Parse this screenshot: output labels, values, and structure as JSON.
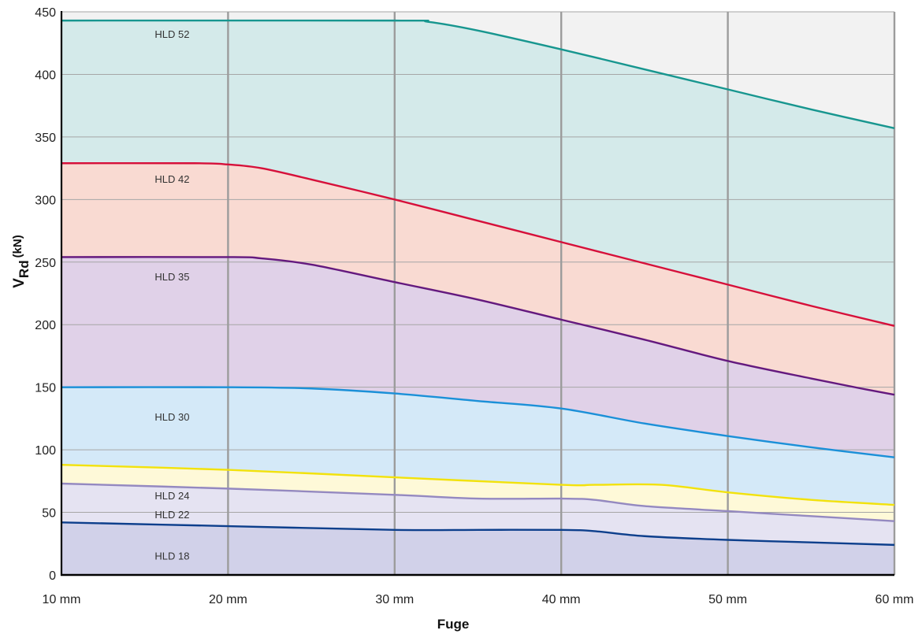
{
  "chart_data": {
    "type": "area",
    "xlabel": "Fuge",
    "ylabel": {
      "main": "V",
      "sub": "Rd",
      "unit": "(kN)"
    },
    "x_ticks": [
      "10 mm",
      "20 mm",
      "30 mm",
      "40 mm",
      "50 mm",
      "60 mm"
    ],
    "y_ticks": [
      "0",
      "50",
      "100",
      "150",
      "200",
      "250",
      "300",
      "350",
      "400",
      "450"
    ],
    "xlim": [
      10,
      60
    ],
    "ylim": [
      0,
      450
    ],
    "grid": true,
    "legend": "inline labels",
    "background_color": "#f2f2f2",
    "series": [
      {
        "name": "HLD 52",
        "color": "#17968f",
        "fill": "#d4eaea",
        "x": [
          10,
          30,
          32,
          35,
          40,
          45,
          50,
          55,
          60
        ],
        "y": [
          443,
          443,
          442,
          435,
          420,
          404,
          388,
          372,
          357
        ]
      },
      {
        "name": "HLD 42",
        "color": "#d6103a",
        "fill": "#f9dad2",
        "x": [
          10,
          18,
          20,
          22,
          25,
          30,
          35,
          40,
          45,
          50,
          55,
          60
        ],
        "y": [
          329,
          329,
          328,
          325,
          316,
          300,
          283,
          266,
          249,
          232,
          215,
          199
        ]
      },
      {
        "name": "HLD 35",
        "color": "#64197e",
        "fill": "#e0d1e8",
        "x": [
          10,
          20,
          22,
          25,
          30,
          35,
          40,
          45,
          50,
          55,
          58,
          60
        ],
        "y": [
          254,
          254,
          253,
          248,
          234,
          220,
          204,
          188,
          171,
          157,
          149,
          144
        ]
      },
      {
        "name": "HLD 30",
        "color": "#1b90d8",
        "fill": "#d4e9f8",
        "x": [
          10,
          20,
          25,
          30,
          35,
          40,
          45,
          50,
          55,
          60
        ],
        "y": [
          150,
          150,
          149,
          145,
          139,
          133,
          121,
          111,
          102,
          94
        ]
      },
      {
        "name": "HLD 24",
        "color": "#f2e20c",
        "fill": "#fef9d8",
        "x": [
          10,
          20,
          30,
          40,
          42,
          46,
          50,
          55,
          60
        ],
        "y": [
          88,
          84,
          78,
          72,
          72,
          72,
          66,
          60,
          56
        ]
      },
      {
        "name": "HLD 22",
        "color": "#9489c0",
        "fill": "#e5e3f2",
        "x": [
          10,
          20,
          30,
          35,
          40,
          42,
          45,
          50,
          55,
          60
        ],
        "y": [
          73,
          69,
          64,
          61,
          61,
          60,
          55,
          51,
          47,
          43
        ]
      },
      {
        "name": "HLD 18",
        "color": "#0d3f8c",
        "fill": "#d1d1e9",
        "x": [
          10,
          20,
          30,
          35,
          40,
          42,
          45,
          50,
          55,
          60
        ],
        "y": [
          42,
          39,
          36,
          36,
          36,
          35,
          31,
          28,
          26,
          24
        ]
      }
    ],
    "label_positions": [
      {
        "series": "HLD 52",
        "x": 15.6,
        "y": 440
      },
      {
        "series": "HLD 42",
        "x": 15.6,
        "y": 324
      },
      {
        "series": "HLD 35",
        "x": 15.6,
        "y": 246
      },
      {
        "series": "HLD 30",
        "x": 15.6,
        "y": 134
      },
      {
        "series": "HLD 24",
        "x": 15.6,
        "y": 71
      },
      {
        "series": "HLD 22",
        "x": 15.6,
        "y": 56
      },
      {
        "series": "HLD 18",
        "x": 15.6,
        "y": 23
      }
    ]
  }
}
